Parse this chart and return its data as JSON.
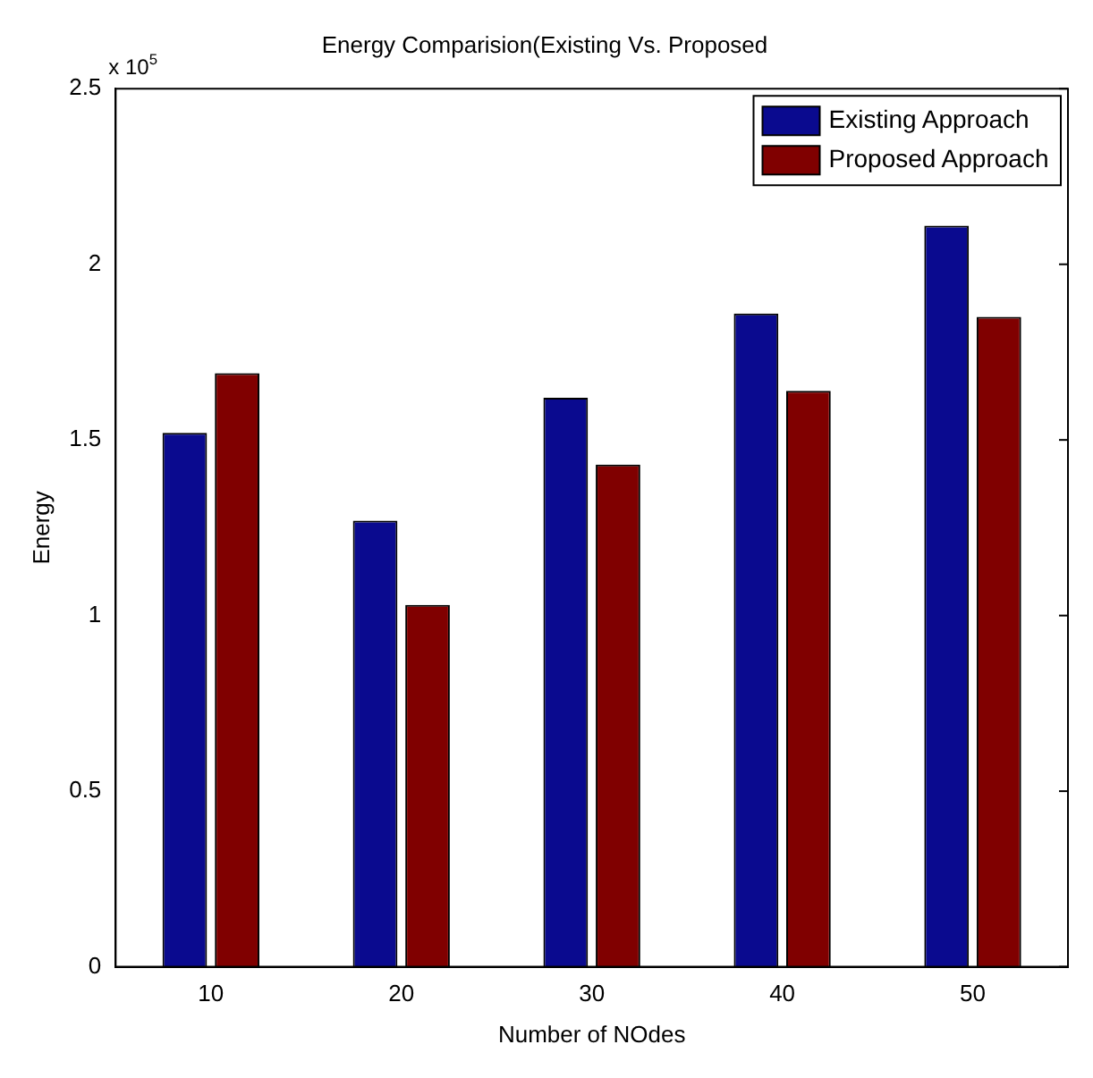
{
  "chart_data": {
    "type": "bar",
    "title": "Energy Comparision(Existing Vs. Proposed",
    "xlabel": "Number of NOdes",
    "ylabel": "Energy",
    "categories": [
      "10",
      "20",
      "30",
      "40",
      "50"
    ],
    "series": [
      {
        "name": "Existing Approach",
        "color": "#0a0a8f",
        "values": [
          1.52,
          1.27,
          1.62,
          1.86,
          2.11
        ]
      },
      {
        "name": "Proposed Approach",
        "color": "#800000",
        "values": [
          1.69,
          1.03,
          1.43,
          1.64,
          1.85
        ]
      }
    ],
    "ylim": [
      0,
      2.5
    ],
    "yticks": [
      0,
      0.5,
      1,
      1.5,
      2,
      2.5
    ],
    "grid": false,
    "legend": "top right",
    "annotations": [
      "x 10$^{5}$"
    ]
  }
}
